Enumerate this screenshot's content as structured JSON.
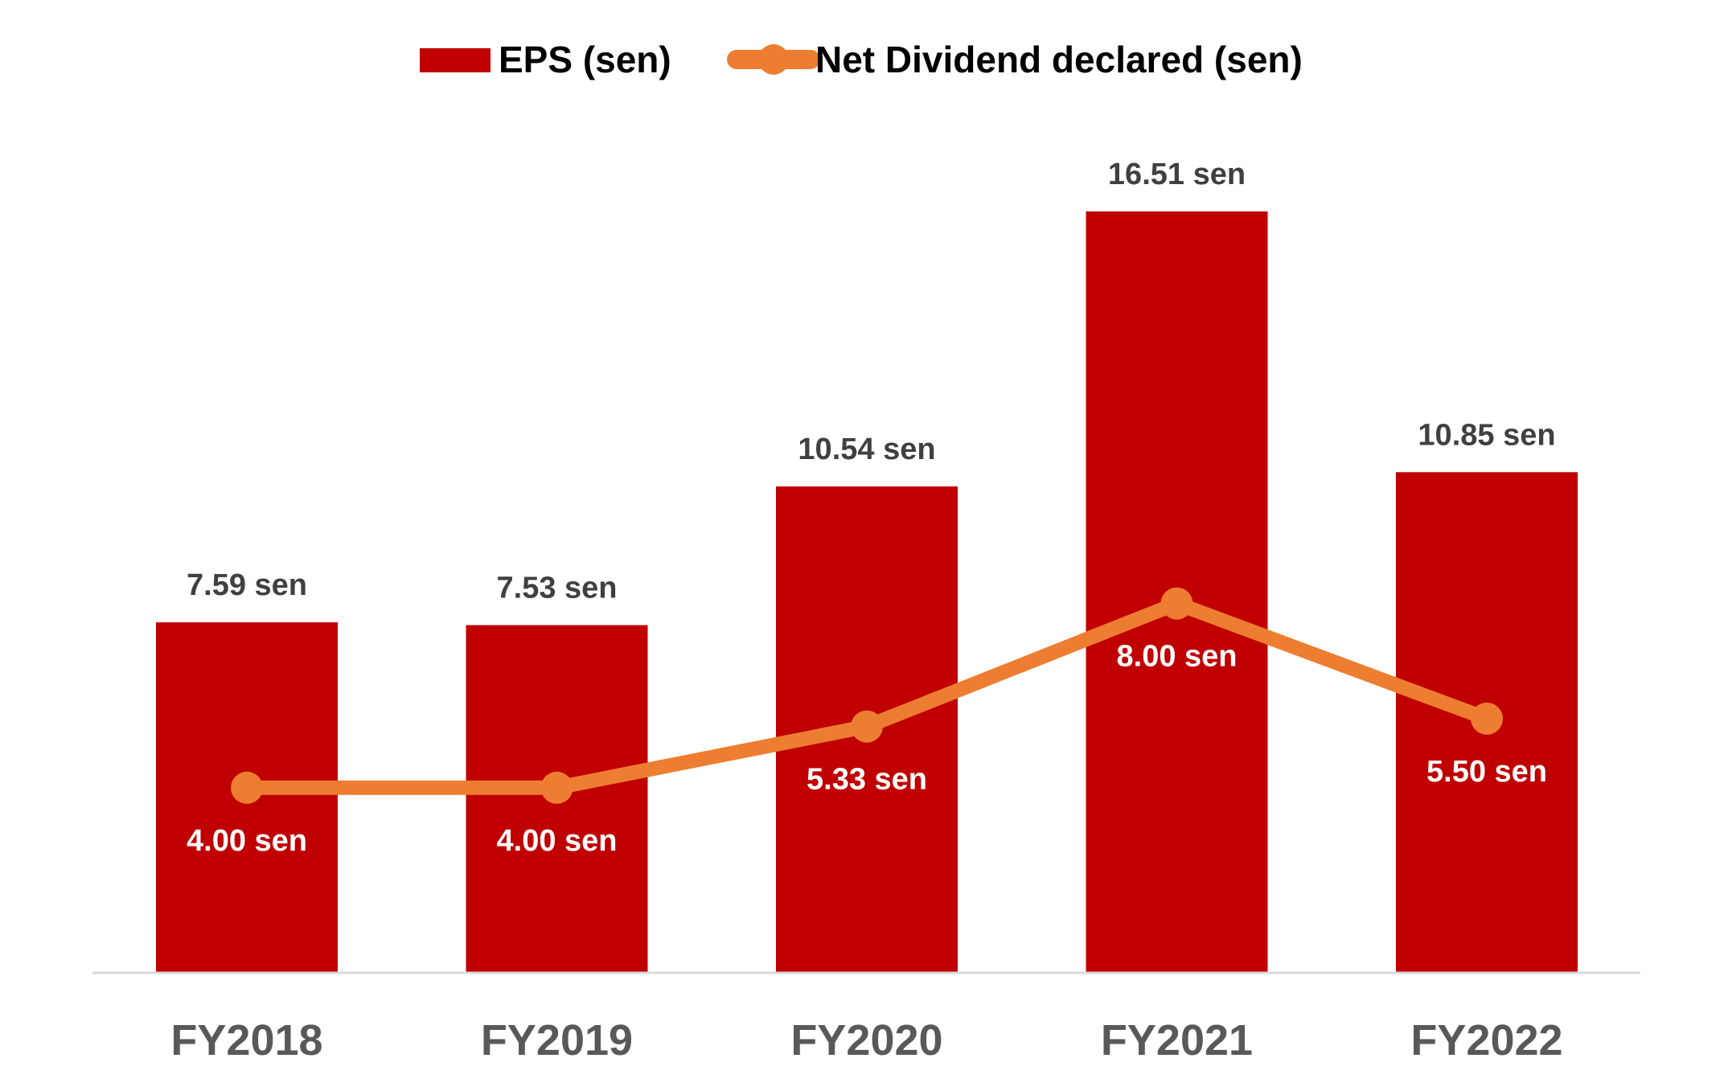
{
  "chart_data": {
    "type": "bar",
    "categories": [
      "FY2018",
      "FY2019",
      "FY2020",
      "FY2021",
      "FY2022"
    ],
    "series": [
      {
        "name": "EPS (sen)",
        "type": "bar",
        "values": [
          7.59,
          7.53,
          10.54,
          16.51,
          10.85
        ],
        "labels": [
          "7.59 sen",
          "7.53 sen",
          "10.54 sen",
          "16.51 sen",
          "10.85 sen"
        ],
        "color": "#c00000"
      },
      {
        "name": "Net Dividend declared (sen)",
        "type": "line",
        "values": [
          4.0,
          4.0,
          5.33,
          8.0,
          5.5
        ],
        "labels": [
          "4.00 sen",
          "4.00 sen",
          "5.33 sen",
          "8.00 sen",
          "5.50 sen"
        ],
        "color": "#ed7d31"
      }
    ],
    "ylim": [
      0,
      18
    ],
    "grid": false,
    "legend_position": "top-center"
  }
}
